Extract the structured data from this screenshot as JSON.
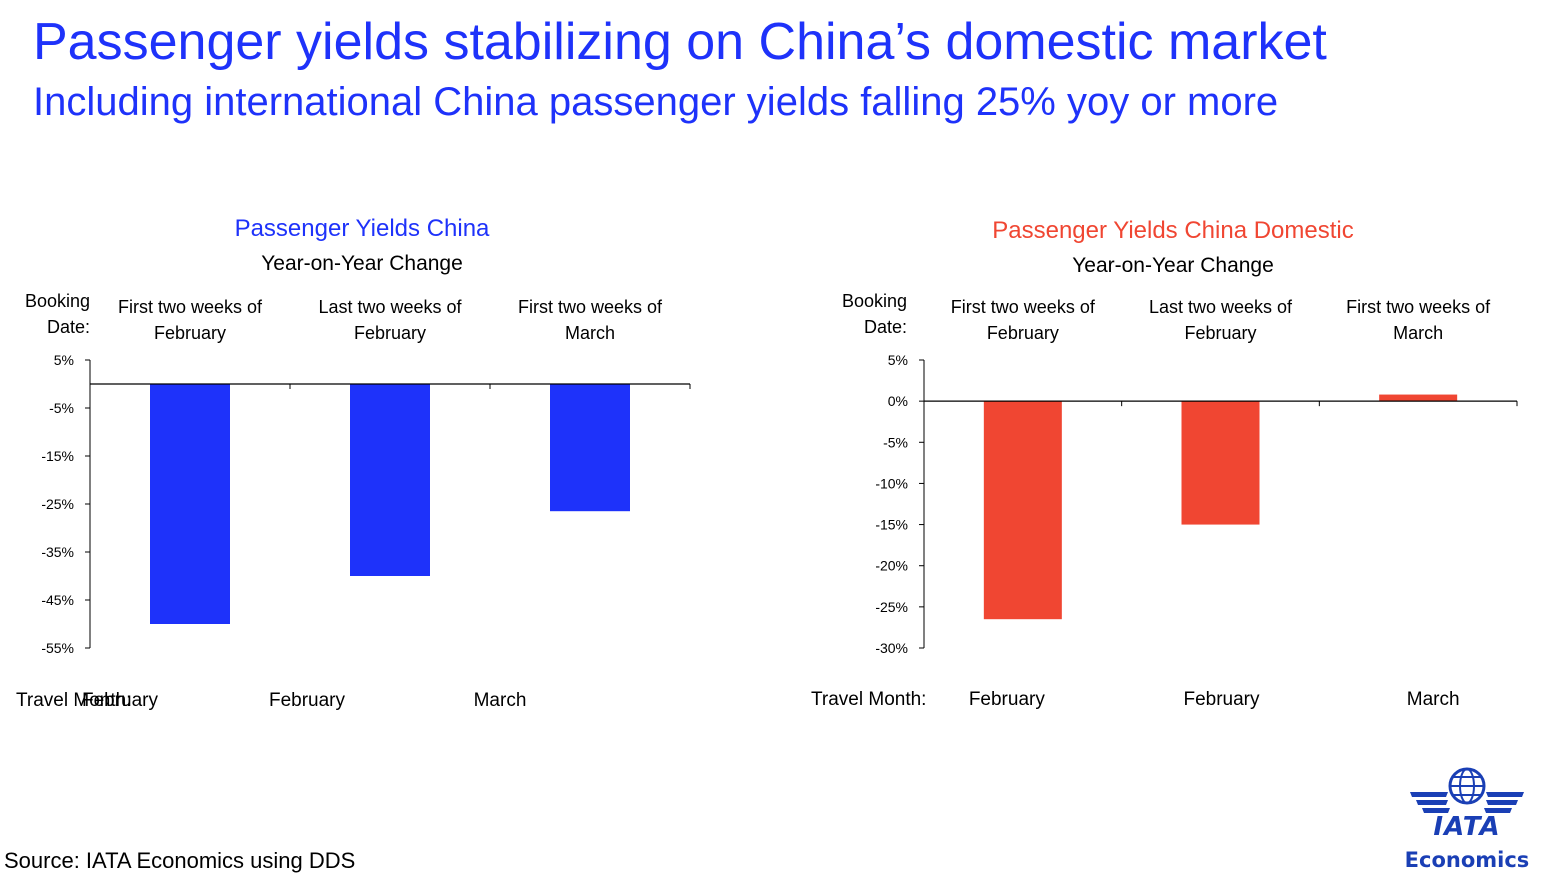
{
  "title": "Passenger yields stabilizing on China’s domestic market",
  "subtitle": "Including international China passenger yields falling 25% yoy or more",
  "footnote": "Source: IATA Economics using DDS",
  "logo": {
    "text": "IATA",
    "subtext": "Economics",
    "icon": "globe-wings-icon",
    "color": "#1a3fb5"
  },
  "colors": {
    "title": "#1e32fa",
    "series_china": "#1e32fa",
    "series_domestic": "#f04632"
  },
  "chart_data": [
    {
      "type": "bar",
      "title": "Passenger Yields China",
      "subtitle": "Year-on-Year Change",
      "title_color": "#1e32fa",
      "bar_color": "#1e32fa",
      "booking_label": [
        "Booking",
        "Date:"
      ],
      "categories": [
        [
          "First two weeks of",
          "February"
        ],
        [
          "Last two weeks of",
          "February"
        ],
        [
          "First two weeks of",
          "March"
        ]
      ],
      "travel_label": "Travel Month:",
      "travel_months": [
        "February",
        "February",
        "March"
      ],
      "values": [
        -50,
        -40,
        -26.5
      ],
      "ylim": [
        -55,
        5
      ],
      "yticks": [
        5,
        -5,
        -15,
        -25,
        -35,
        -45,
        -55
      ],
      "ytick_labels": [
        "5%",
        "-5%",
        "-15%",
        "-25%",
        "-35%",
        "-45%",
        "-55%"
      ],
      "baseline": 0,
      "grid": false
    },
    {
      "type": "bar",
      "title": "Passenger Yields China Domestic",
      "subtitle": "Year-on-Year Change",
      "title_color": "#f04632",
      "bar_color": "#f04632",
      "booking_label": [
        "Booking",
        "Date:"
      ],
      "categories": [
        [
          "First two weeks of",
          "February"
        ],
        [
          "Last two weeks of",
          "February"
        ],
        [
          "First two weeks of",
          "March"
        ]
      ],
      "travel_label": "Travel Month:",
      "travel_months": [
        "February",
        "February",
        "March"
      ],
      "values": [
        -26.5,
        -15,
        0.8
      ],
      "ylim": [
        -30,
        5
      ],
      "yticks": [
        5,
        0,
        -5,
        -10,
        -15,
        -20,
        -25,
        -30
      ],
      "ytick_labels": [
        "5%",
        "0%",
        "-5%",
        "-10%",
        "-15%",
        "-20%",
        "-25%",
        "-30%"
      ],
      "baseline": 0,
      "grid": false
    }
  ]
}
